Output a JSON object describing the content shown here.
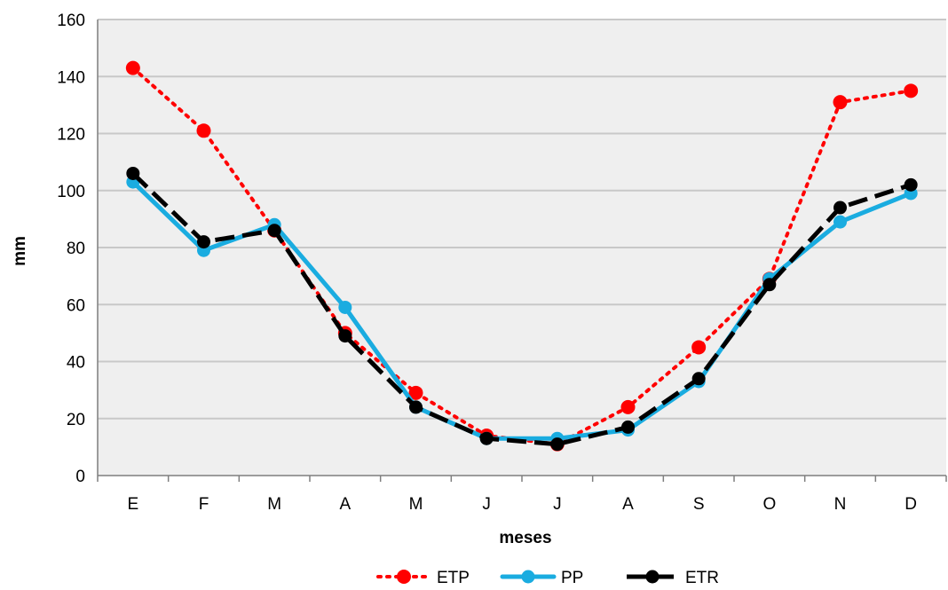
{
  "chart_data": {
    "type": "line",
    "title": "",
    "xlabel": "meses",
    "ylabel": "mm",
    "categories": [
      "E",
      "F",
      "M",
      "A",
      "M",
      "J",
      "J",
      "A",
      "S",
      "O",
      "N",
      "D"
    ],
    "ylim": [
      0,
      160
    ],
    "yticks": [
      0,
      20,
      40,
      60,
      80,
      100,
      120,
      140,
      160
    ],
    "grid": true,
    "legend_position": "bottom",
    "series": [
      {
        "name": "ETP",
        "color": "#ff0000",
        "line_style": "dotted",
        "values": [
          143,
          121,
          86,
          50,
          29,
          14,
          11,
          24,
          45,
          69,
          131,
          135
        ]
      },
      {
        "name": "PP",
        "color": "#1aace0",
        "line_style": "solid",
        "values": [
          103,
          79,
          88,
          59,
          24,
          13,
          13,
          16,
          33,
          69,
          89,
          99
        ]
      },
      {
        "name": "ETR",
        "color": "#000000",
        "line_style": "dashed",
        "values": [
          106,
          82,
          86,
          49,
          24,
          13,
          11,
          17,
          34,
          67,
          94,
          102
        ]
      }
    ]
  }
}
